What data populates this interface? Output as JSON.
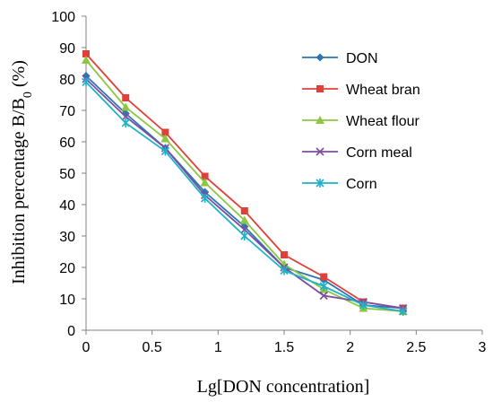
{
  "chart_data": {
    "type": "line",
    "title": "",
    "xlabel": "Lg[DON concentration]",
    "ylabel": {
      "prefix": "Inhibition percentage B/B",
      "subscript": "0",
      "suffix": " (%)"
    },
    "x": [
      0,
      0.3,
      0.6,
      0.9,
      1.2,
      1.5,
      1.8,
      2.1,
      2.4
    ],
    "xlim": [
      0,
      3
    ],
    "ylim": [
      0,
      100
    ],
    "xticks": [
      "0",
      "0.5",
      "1",
      "1.5",
      "2",
      "2.5",
      "3"
    ],
    "yticks": [
      "0",
      "10",
      "20",
      "30",
      "40",
      "50",
      "60",
      "70",
      "80",
      "90",
      "100"
    ],
    "grid": false,
    "legend_position": "right",
    "series": [
      {
        "name": "DON",
        "color": "#2E75B6",
        "marker": "diamond",
        "values": [
          81,
          69,
          58,
          44,
          33,
          20,
          16,
          8,
          7
        ]
      },
      {
        "name": "Wheat bran",
        "color": "#E0403A",
        "marker": "square",
        "values": [
          88,
          74,
          63,
          49,
          38,
          24,
          17,
          9,
          7
        ]
      },
      {
        "name": "Wheat flour",
        "color": "#8DC63F",
        "marker": "triangle",
        "values": [
          86,
          71,
          61,
          47,
          35,
          21,
          13,
          7,
          6
        ]
      },
      {
        "name": "Corn meal",
        "color": "#7D4E9E",
        "marker": "x",
        "values": [
          80,
          68,
          58,
          43,
          32,
          20,
          11,
          9,
          7
        ]
      },
      {
        "name": "Corn",
        "color": "#1FB1C9",
        "marker": "star",
        "values": [
          79,
          66,
          57,
          42,
          30,
          19,
          14,
          8,
          6
        ]
      }
    ]
  }
}
